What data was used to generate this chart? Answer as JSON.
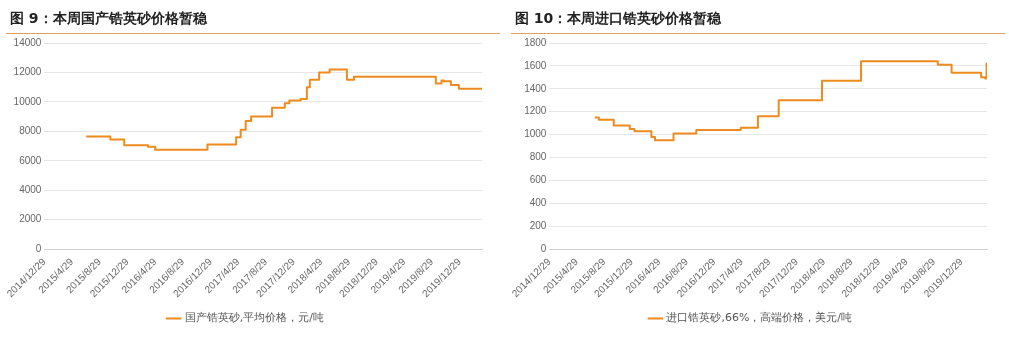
{
  "chart_data": [
    {
      "type": "step",
      "title": "图 9：本周国产锆英砂价格暂稳",
      "legend": "bottom",
      "grid": "y",
      "marker": "none",
      "series": [
        {
          "name": "国产锆英砂,平均价格，元/吨",
          "color": "#ed8b1e",
          "x": [
            "2015-07-01",
            "2015-10-15",
            "2015-12-15",
            "2016-03-29",
            "2016-04-29",
            "2016-12-15",
            "2017-04-20",
            "2017-05-10",
            "2017-06-01",
            "2017-06-25",
            "2017-09-25",
            "2017-11-20",
            "2017-12-10",
            "2018-01-29",
            "2018-02-25",
            "2018-03-10",
            "2018-04-20",
            "2018-06-05",
            "2018-08-20",
            "2018-09-20",
            "2019-09-15",
            "2019-10-10",
            "2019-10-20",
            "2019-11-20",
            "2019-12-25",
            "2020-04-05"
          ],
          "values": [
            7650,
            7450,
            7050,
            6950,
            6750,
            7100,
            7600,
            8100,
            8700,
            9000,
            9600,
            9900,
            10100,
            10200,
            11000,
            11500,
            12000,
            12200,
            11500,
            11700,
            11250,
            11450,
            11400,
            11150,
            10900,
            10900
          ]
        }
      ],
      "xlim": [
        "2014-12-29",
        "2020-04-05"
      ],
      "xticks": [
        {
          "value": "2014-12-29",
          "label": "2014/12/29"
        },
        {
          "value": "2015-04-29",
          "label": "2015/4/29"
        },
        {
          "value": "2015-08-29",
          "label": "2015/8/29"
        },
        {
          "value": "2015-12-29",
          "label": "2015/12/29"
        },
        {
          "value": "2016-04-29",
          "label": "2016/4/29"
        },
        {
          "value": "2016-08-29",
          "label": "2016/8/29"
        },
        {
          "value": "2016-12-29",
          "label": "2016/12/29"
        },
        {
          "value": "2017-04-29",
          "label": "2017/4/29"
        },
        {
          "value": "2017-08-29",
          "label": "2017/8/29"
        },
        {
          "value": "2017-12-29",
          "label": "2017/12/29"
        },
        {
          "value": "2018-04-29",
          "label": "2018/4/29"
        },
        {
          "value": "2018-08-29",
          "label": "2018/8/29"
        },
        {
          "value": "2018-12-29",
          "label": "2018/12/29"
        },
        {
          "value": "2019-04-29",
          "label": "2019/4/29"
        },
        {
          "value": "2019-08-29",
          "label": "2019/8/29"
        },
        {
          "value": "2019-12-29",
          "label": "2019/12/29"
        }
      ],
      "ylim": [
        0,
        14000
      ],
      "yticks": [
        0,
        2000,
        4000,
        6000,
        8000,
        10000,
        12000,
        14000
      ]
    },
    {
      "type": "step",
      "title": "图 10：本周进口锆英砂价格暂稳",
      "legend": "bottom",
      "grid": "y",
      "marker": "none",
      "series": [
        {
          "name": "进口锆英砂,66%，高端价格，美元/吨",
          "color": "#ed8b1e",
          "x": [
            "2015-07-18",
            "2015-08-05",
            "2015-10-10",
            "2015-12-20",
            "2016-01-10",
            "2016-03-25",
            "2016-04-10",
            "2016-07-01",
            "2016-10-10",
            "2017-04-25",
            "2017-07-10",
            "2017-10-10",
            "2018-04-20",
            "2018-10-10",
            "2019-09-15",
            "2019-11-15",
            "2020-03-25",
            "2020-04-12",
            "2020-04-18",
            "2020-04-20"
          ],
          "values": [
            1150,
            1130,
            1080,
            1050,
            1030,
            980,
            950,
            1010,
            1040,
            1060,
            1160,
            1300,
            1470,
            1640,
            1610,
            1540,
            1500,
            1490,
            1620,
            1620
          ]
        }
      ],
      "xlim": [
        "2014-12-29",
        "2020-04-20"
      ],
      "xticks": [
        {
          "value": "2014-12-29",
          "label": "2014/12/29"
        },
        {
          "value": "2015-04-29",
          "label": "2015/4/29"
        },
        {
          "value": "2015-08-29",
          "label": "2015/8/29"
        },
        {
          "value": "2015-12-29",
          "label": "2015/12/29"
        },
        {
          "value": "2016-04-29",
          "label": "2016/4/29"
        },
        {
          "value": "2016-08-29",
          "label": "2016/8/29"
        },
        {
          "value": "2016-12-29",
          "label": "2016/12/29"
        },
        {
          "value": "2017-04-29",
          "label": "2017/4/29"
        },
        {
          "value": "2017-08-29",
          "label": "2017/8/29"
        },
        {
          "value": "2017-12-29",
          "label": "2017/12/29"
        },
        {
          "value": "2018-04-29",
          "label": "2018/4/29"
        },
        {
          "value": "2018-08-29",
          "label": "2018/8/29"
        },
        {
          "value": "2018-12-29",
          "label": "2018/12/29"
        },
        {
          "value": "2019-04-29",
          "label": "2019/4/29"
        },
        {
          "value": "2019-08-29",
          "label": "2019/8/29"
        },
        {
          "value": "2019-12-29",
          "label": "2019/12/29"
        }
      ],
      "ylim": [
        0,
        1800
      ],
      "yticks": [
        0,
        200,
        400,
        600,
        800,
        1000,
        1200,
        1400,
        1600,
        1800
      ]
    }
  ]
}
